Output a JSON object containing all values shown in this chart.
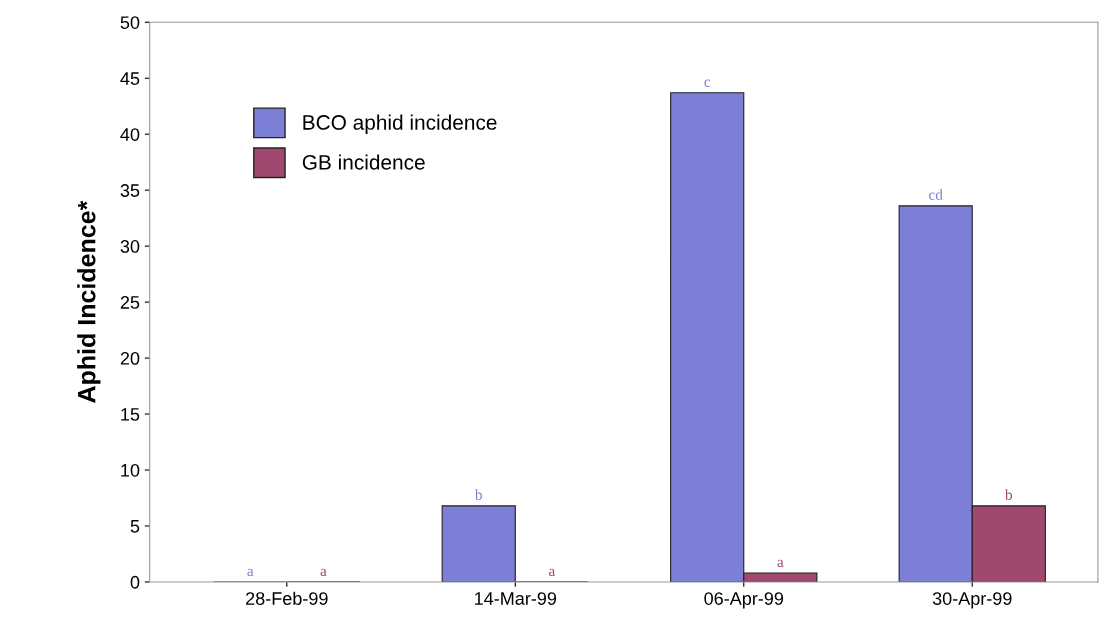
{
  "chart_data": {
    "type": "bar",
    "ylabel": "Aphid Incidence*",
    "categories": [
      "28-Feb-99",
      "14-Mar-99",
      "06-Apr-99",
      "30-Apr-99"
    ],
    "series": [
      {
        "name": "BCO aphid incidence",
        "color": "#7b7fd6",
        "values": [
          0,
          6.8,
          43.7,
          33.6
        ],
        "value_labels": [
          "a",
          "b",
          "c",
          "cd"
        ]
      },
      {
        "name": "GB incidence",
        "color": "#a04870",
        "values": [
          0,
          0,
          0.8,
          6.8
        ],
        "value_labels": [
          "a",
          "a",
          "a",
          "b"
        ]
      }
    ],
    "ylim": [
      0,
      50
    ],
    "yticks": [
      0,
      5,
      10,
      15,
      20,
      25,
      30,
      35,
      40,
      45,
      50
    ],
    "grid": false,
    "legend": "top left"
  }
}
